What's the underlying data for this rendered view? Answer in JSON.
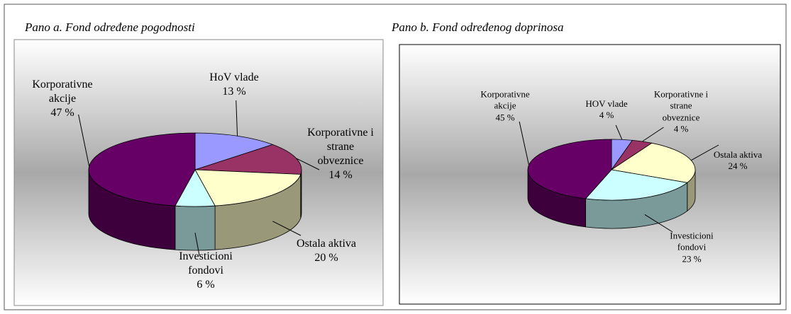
{
  "chart_data": [
    {
      "type": "pie",
      "title": "Pano a. Fond određene pogodnosti",
      "categories": [
        "HoV vlade",
        "Korporativne i strane obveznice",
        "Ostala aktiva",
        "Investicioni fondovi",
        "Korporativne akcije"
      ],
      "values": [
        13,
        14,
        20,
        6,
        47
      ],
      "value_labels": [
        "13 %",
        "14 %",
        "20 %",
        "6 %",
        "47 %"
      ],
      "colors": [
        "#9999ff",
        "#993366",
        "#ffffcc",
        "#ccffff",
        "#660066"
      ]
    },
    {
      "type": "pie",
      "title": "Pano b. Fond određenog doprinosa",
      "categories": [
        "HOV vlade",
        "Korporativne i strane obveznice",
        "Ostala aktiva",
        "Investicioni fondovi",
        "Korporativne akcije"
      ],
      "values": [
        4,
        4,
        24,
        23,
        45
      ],
      "value_labels": [
        "4 %",
        "4 %",
        "24 %",
        "23 %",
        "45 %"
      ],
      "colors": [
        "#9999ff",
        "#993366",
        "#ffffcc",
        "#ccffff",
        "#660066"
      ]
    }
  ]
}
